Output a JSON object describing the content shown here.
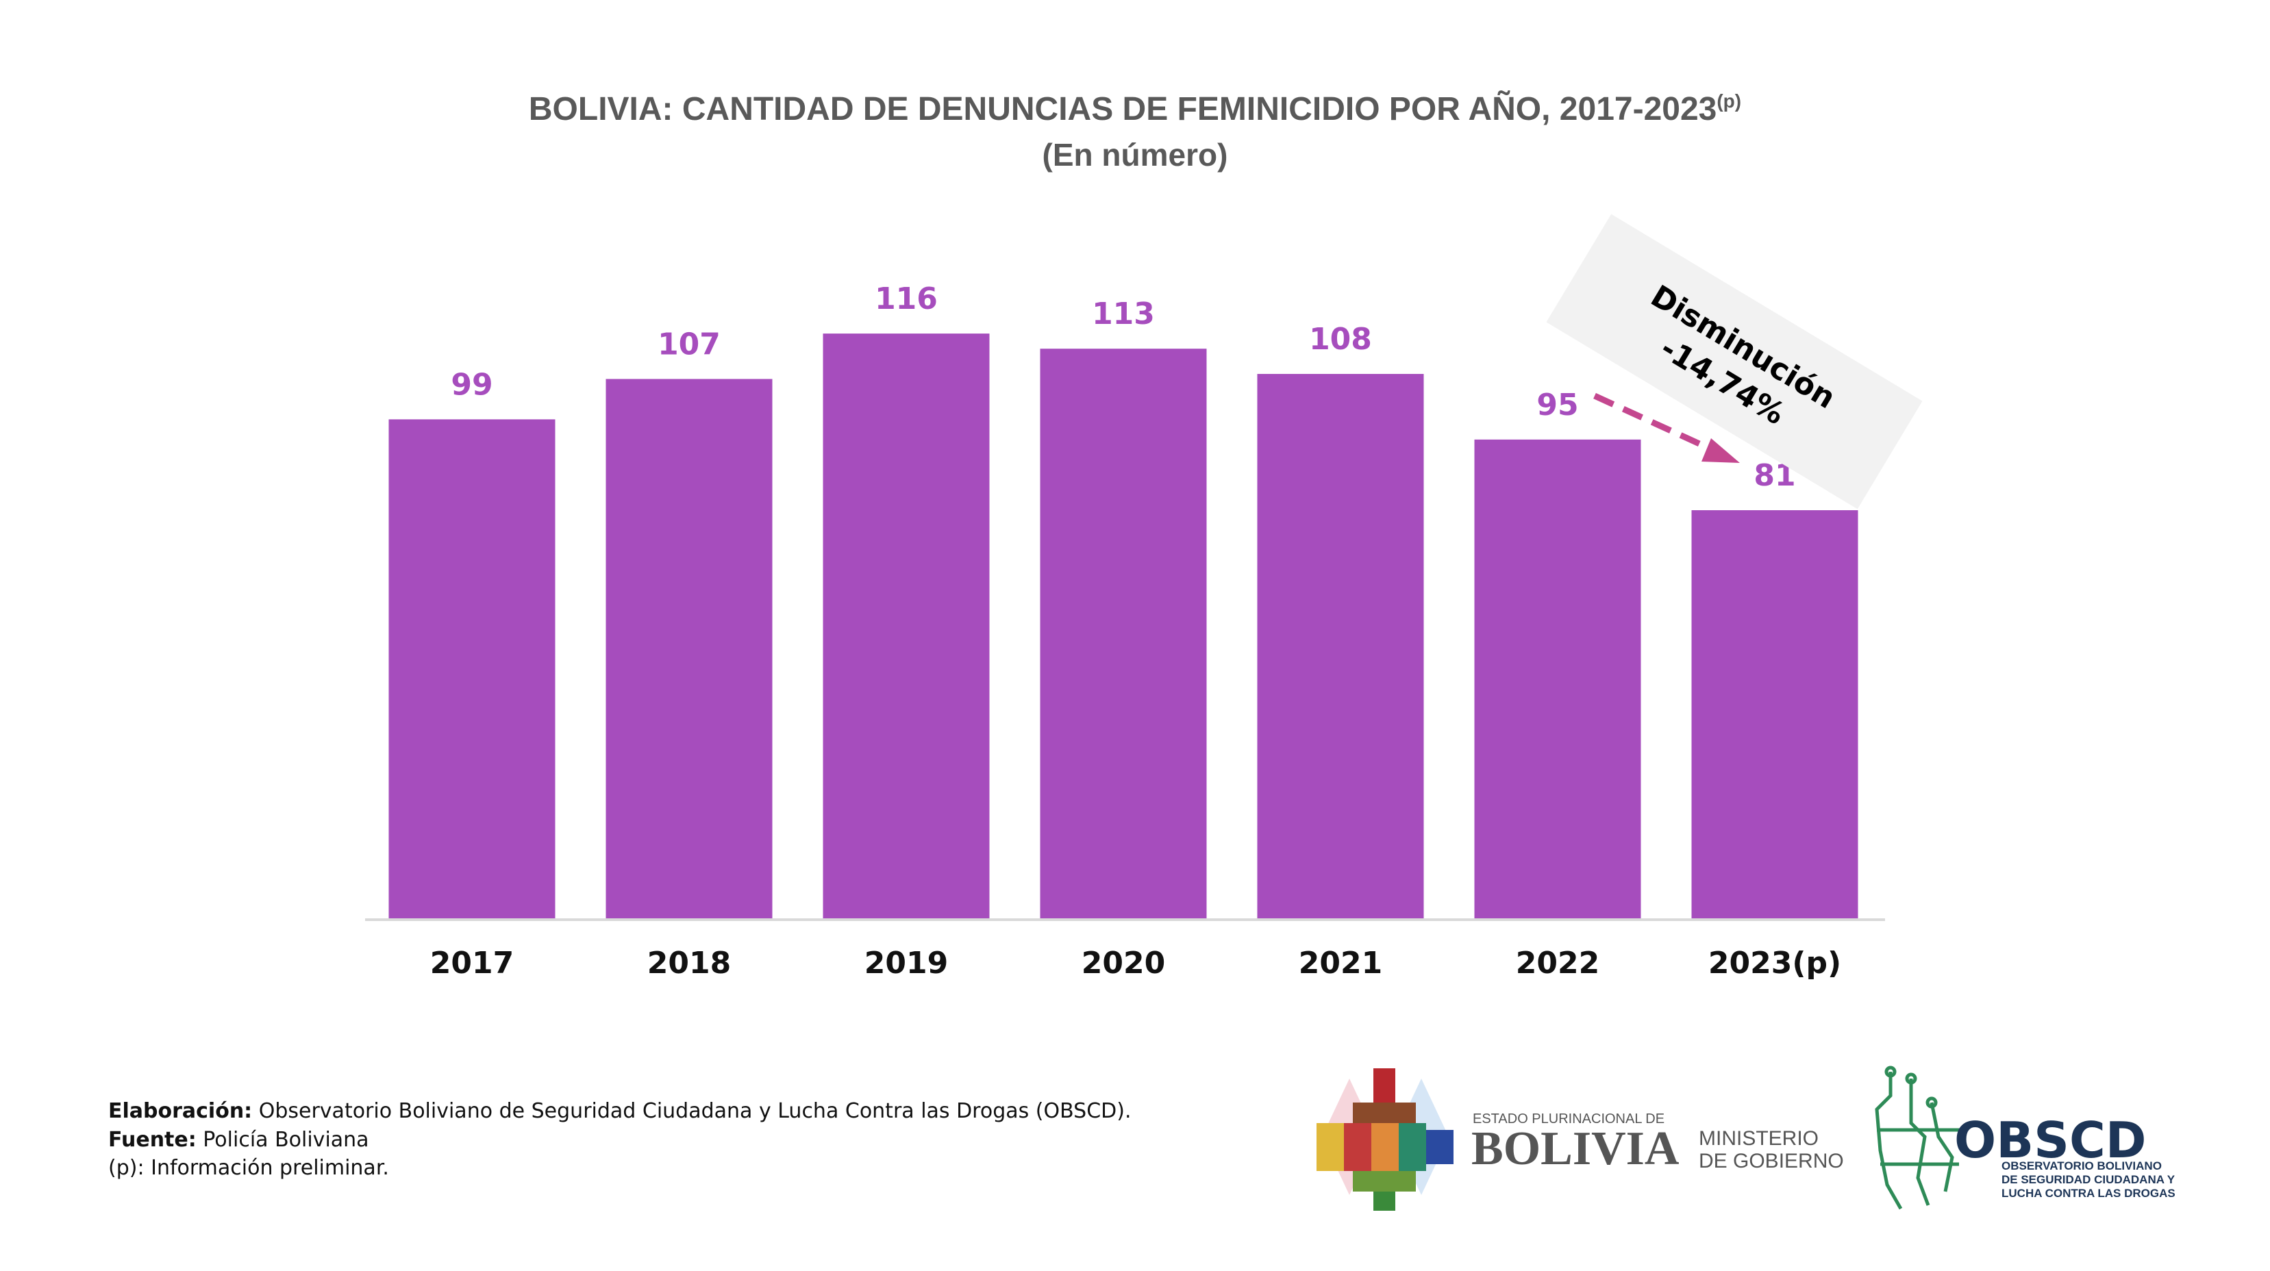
{
  "chart_data": {
    "type": "bar",
    "title": "BOLIVIA: CANTIDAD DE DENUNCIAS DE FEMINICIDIO POR AÑO, 2017-2023",
    "title_superscript": "(p)",
    "subtitle": "(En número)",
    "categories": [
      "2017",
      "2018",
      "2019",
      "2020",
      "2021",
      "2022",
      "2023(p)"
    ],
    "values": [
      99,
      107,
      116,
      113,
      108,
      95,
      81
    ],
    "xlabel": "",
    "ylabel": "",
    "ylim": [
      0,
      125
    ],
    "grid": false,
    "bar_color": "#a64dbd",
    "annotation": {
      "line1": "Disminución",
      "line2": "-14,74%",
      "from": "2022",
      "to": "2023(p)",
      "arrow_color": "#c4478f",
      "box_color": "#f2f2f2"
    }
  },
  "footer": {
    "elaboracion_label": "Elaboración:",
    "elaboracion_text": " Observatorio Boliviano de Seguridad Ciudadana y Lucha Contra las Drogas (OBSCD).",
    "fuente_label": "Fuente:",
    "fuente_text": " Policía Boliviana",
    "nota": "(p): Información preliminar."
  },
  "logos": {
    "estado": "ESTADO PLURINACIONAL DE",
    "bolivia": "BOLIVIA",
    "ministerio_1": "MINISTERIO",
    "ministerio_2": "DE GOBIERNO",
    "obscd": "OBSCD",
    "obscd_1": "OBSERVATORIO BOLIVIANO",
    "obscd_2": "DE SEGURIDAD CIUDADANA Y",
    "obscd_3": "LUCHA CONTRA LAS DROGAS"
  }
}
